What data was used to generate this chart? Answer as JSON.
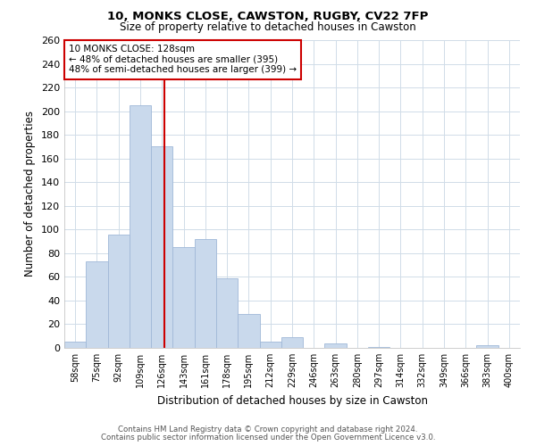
{
  "title": "10, MONKS CLOSE, CAWSTON, RUGBY, CV22 7FP",
  "subtitle": "Size of property relative to detached houses in Cawston",
  "xlabel": "Distribution of detached houses by size in Cawston",
  "ylabel": "Number of detached properties",
  "bar_labels": [
    "58sqm",
    "75sqm",
    "92sqm",
    "109sqm",
    "126sqm",
    "143sqm",
    "161sqm",
    "178sqm",
    "195sqm",
    "212sqm",
    "229sqm",
    "246sqm",
    "263sqm",
    "280sqm",
    "297sqm",
    "314sqm",
    "332sqm",
    "349sqm",
    "366sqm",
    "383sqm",
    "400sqm"
  ],
  "bar_values": [
    5,
    73,
    96,
    205,
    170,
    85,
    92,
    59,
    29,
    5,
    9,
    0,
    4,
    0,
    1,
    0,
    0,
    0,
    0,
    2,
    0
  ],
  "bar_color": "#c9d9ec",
  "bar_edge_color": "#a0b8d8",
  "ylim": [
    0,
    260
  ],
  "yticks": [
    0,
    20,
    40,
    60,
    80,
    100,
    120,
    140,
    160,
    180,
    200,
    220,
    240,
    260
  ],
  "marker_line_color": "#cc0000",
  "annotation_title": "10 MONKS CLOSE: 128sqm",
  "annotation_line1": "← 48% of detached houses are smaller (395)",
  "annotation_line2": "48% of semi-detached houses are larger (399) →",
  "annotation_box_color": "#cc0000",
  "footer1": "Contains HM Land Registry data © Crown copyright and database right 2024.",
  "footer2": "Contains public sector information licensed under the Open Government Licence v3.0.",
  "background_color": "#ffffff",
  "grid_color": "#d0dce8"
}
